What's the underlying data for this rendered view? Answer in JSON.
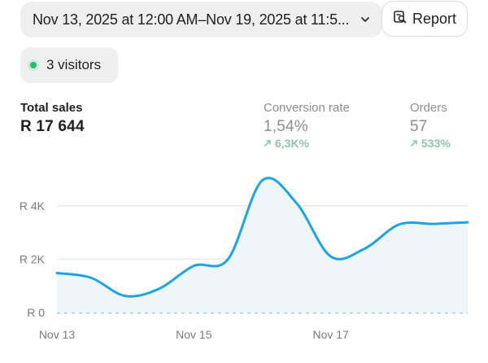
{
  "header": {
    "date_range": "Nov 13, 2025 at 12:00 AM–Nov 19, 2025 at 11:5...",
    "report_label": "Report"
  },
  "live": {
    "visitors_label": "3 visitors"
  },
  "metrics": {
    "total_sales": {
      "title": "Total sales",
      "value": "R 17 644"
    },
    "conversion_rate": {
      "title": "Conversion rate",
      "value": "1,54%",
      "change": "6,3K%"
    },
    "orders": {
      "title": "Orders",
      "value": "57",
      "change": "533%"
    }
  },
  "colors": {
    "line": "#1fa4e3",
    "area": "#eef5fa",
    "live_dot": "#21c16b",
    "change_positive": "#8fc5a8"
  },
  "icons": {
    "chevron": "chevron-down-icon",
    "report": "report-search-icon",
    "change": "arrow-up-right-icon"
  },
  "chart_data": {
    "type": "area",
    "x": [
      "Nov 13",
      "Nov 13.5",
      "Nov 14",
      "Nov 14.5",
      "Nov 15",
      "Nov 15.5",
      "Nov 16",
      "Nov 16.5",
      "Nov 17",
      "Nov 17.5",
      "Nov 18",
      "Nov 18.5",
      "Nov 19"
    ],
    "values": [
      1480,
      1300,
      620,
      900,
      1750,
      2000,
      4950,
      4100,
      2100,
      2400,
      3300,
      3320,
      3380
    ],
    "x_tick_labels": [
      "Nov 13",
      "Nov 15",
      "Nov 17"
    ],
    "y_tick_labels": [
      "R 0",
      "R 2K",
      "R 4K"
    ],
    "y_ticks": [
      0,
      2000,
      4000
    ],
    "ylim": [
      0,
      5000
    ],
    "grid": true,
    "comparison_baseline": 0
  }
}
